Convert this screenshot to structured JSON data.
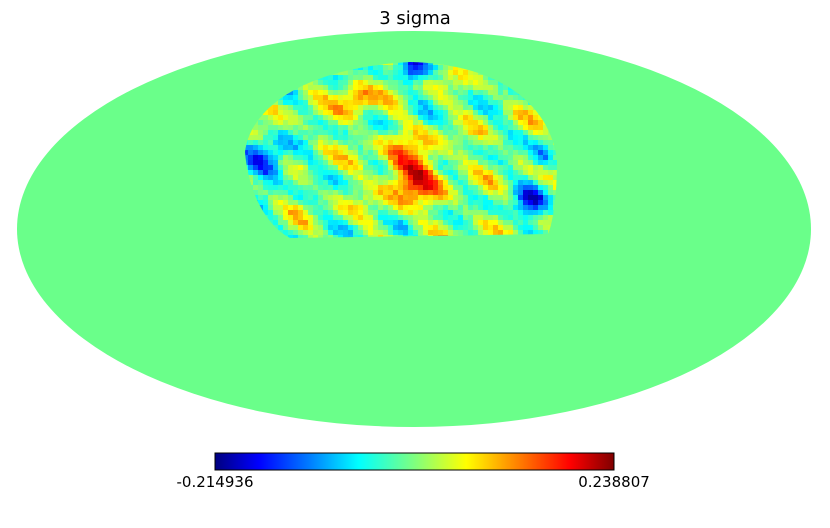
{
  "title": "3 sigma",
  "colorbar": {
    "min": -0.214936,
    "max": 0.238807
  }
}
